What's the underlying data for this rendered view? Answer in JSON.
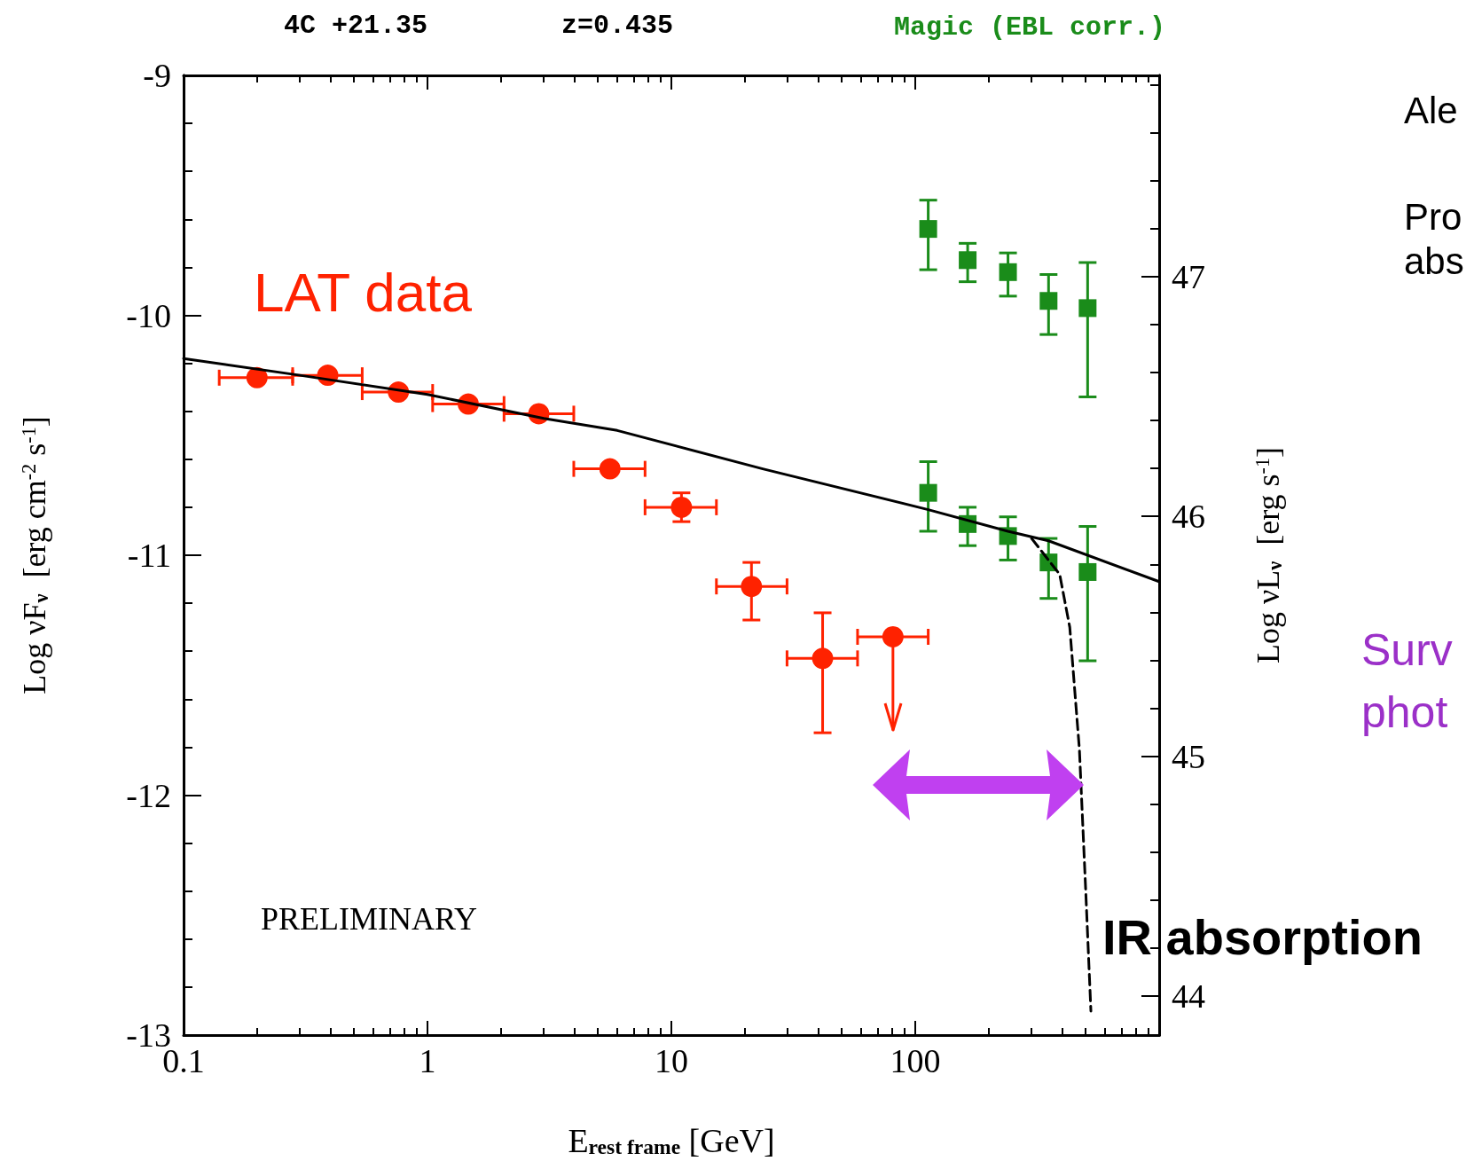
{
  "chart_data": {
    "type": "scatter",
    "title": "4C +21.35",
    "subtitle": "z=0.435",
    "xlabel": "E$_{rest frame}$ [GeV]",
    "ylabel": "Log νF$_{ν}$  [erg cm$^{-2}$ s$^{-1}$]",
    "y2label": "Log νL$_{ν}$  [erg s$^{-1}$]",
    "log": "x",
    "xlim": [
      0.1,
      1000
    ],
    "xticks": [
      0.1,
      {
        "value": 0.2,
        "label": null
      },
      {
        "value": 0.3,
        "label": null
      },
      {
        "value": 0.4,
        "label": null
      },
      {
        "value": 0.5,
        "label": null
      },
      {
        "value": 0.6,
        "label": null
      },
      {
        "value": 0.7,
        "label": null
      },
      {
        "value": 0.8,
        "label": null
      },
      {
        "value": 0.9,
        "label": null
      },
      1,
      {
        "value": 2,
        "label": null
      },
      {
        "value": 3,
        "label": null
      },
      {
        "value": 4,
        "label": null
      },
      {
        "value": 5,
        "label": null
      },
      {
        "value": 6,
        "label": null
      },
      {
        "value": 7,
        "label": null
      },
      {
        "value": 8,
        "label": null
      },
      {
        "value": 9,
        "label": null
      },
      10,
      {
        "value": 20,
        "label": null
      },
      {
        "value": 30,
        "label": null
      },
      {
        "value": 40,
        "label": null
      },
      {
        "value": 50,
        "label": null
      },
      {
        "value": 60,
        "label": null
      },
      {
        "value": 70,
        "label": null
      },
      {
        "value": 80,
        "label": null
      },
      {
        "value": 90,
        "label": null
      },
      100,
      {
        "value": 200,
        "label": null
      },
      {
        "value": 300,
        "label": null
      },
      {
        "value": 400,
        "label": null
      },
      {
        "value": 500,
        "label": null
      },
      {
        "value": 600,
        "label": null
      },
      {
        "value": 700,
        "label": null
      },
      {
        "value": 800,
        "label": null
      },
      {
        "value": 900,
        "label": null
      }
    ],
    "ylim": [
      -13,
      -9
    ],
    "yticks": [
      -13,
      {
        "value": -12.8,
        "label": null
      },
      {
        "value": -12.6,
        "label": null
      },
      {
        "value": -12.4,
        "label": null
      },
      {
        "value": -12.2,
        "label": null
      },
      -12,
      {
        "value": -11.8,
        "label": null
      },
      {
        "value": -11.6,
        "label": null
      },
      {
        "value": -11.4,
        "label": null
      },
      {
        "value": -11.2,
        "label": null
      },
      -11,
      {
        "value": -10.8,
        "label": null
      },
      {
        "value": -10.6,
        "label": null
      },
      {
        "value": -10.4,
        "label": null
      },
      {
        "value": -10.2,
        "label": null
      },
      -10,
      {
        "value": -9.8,
        "label": null
      },
      {
        "value": -9.6,
        "label": null
      },
      {
        "value": -9.4,
        "label": null
      },
      {
        "value": -9.2,
        "label": null
      },
      -9
    ],
    "y2lim": [
      43.838,
      47.838
    ],
    "y2ticks": [
      44,
      {
        "value": 44.2,
        "label": null
      },
      {
        "value": 44.4,
        "label": null
      },
      {
        "value": 44.6,
        "label": null
      },
      {
        "value": 44.8,
        "label": null
      },
      45,
      {
        "value": 45.2,
        "label": null
      },
      {
        "value": 45.4,
        "label": null
      },
      {
        "value": 45.6,
        "label": null
      },
      {
        "value": 45.8,
        "label": null
      },
      46,
      {
        "value": 46.2,
        "label": null
      },
      {
        "value": 46.4,
        "label": null
      },
      {
        "value": 46.6,
        "label": null
      },
      {
        "value": 46.8,
        "label": null
      },
      47,
      {
        "value": 47.2,
        "label": null
      },
      {
        "value": 47.4,
        "label": null
      },
      {
        "value": 47.6,
        "label": null
      },
      {
        "value": 47.8,
        "label": null
      }
    ],
    "series": [
      {
        "name": "LAT data",
        "marker": "circle",
        "color": "#ff2200",
        "x": [
          0.2,
          0.39,
          0.76,
          1.47,
          2.86,
          5.6,
          11,
          21.3,
          41.7,
          81
        ],
        "values": [
          -10.26,
          -10.25,
          -10.32,
          -10.37,
          -10.41,
          -10.64,
          -10.8,
          -11.13,
          -11.43,
          -11.34
        ],
        "xerrors": [
          [
            0.14,
            0.28
          ],
          [
            0.28,
            0.54
          ],
          [
            0.54,
            1.05
          ],
          [
            1.05,
            2.06
          ],
          [
            2.06,
            3.98
          ],
          [
            3.98,
            7.8
          ],
          [
            7.8,
            15.3
          ],
          [
            15.3,
            29.8
          ],
          [
            29.8,
            58
          ],
          [
            58,
            113
          ]
        ],
        "errors": [
          null,
          null,
          null,
          null,
          null,
          null,
          [
            -10.86,
            -10.74
          ],
          [
            -11.27,
            -11.03
          ],
          [
            -11.74,
            -11.24
          ],
          [
            -11.73,
            -11.34
          ]
        ]
      },
      {
        "name": "Magic (EBL corr.)",
        "marker": "square",
        "color": "#1a8c1a",
        "x": [
          113,
          164,
          240,
          352,
          509
        ],
        "values": [
          -9.64,
          -9.77,
          -9.82,
          -9.94,
          -9.97
        ],
        "errors": [
          [
            -9.81,
            -9.52
          ],
          [
            -9.86,
            -9.7
          ],
          [
            -9.92,
            -9.74
          ],
          [
            -10.08,
            -9.83
          ],
          [
            -10.34,
            -9.78
          ]
        ]
      },
      {
        "marker": "square",
        "color": "#1a8c1a",
        "x": [
          113,
          164,
          240,
          352,
          509
        ],
        "values": [
          -10.74,
          -10.87,
          -10.92,
          -11.03,
          -11.07
        ],
        "errors": [
          [
            -10.9,
            -10.61
          ],
          [
            -10.96,
            -10.8
          ],
          [
            -11.02,
            -10.84
          ],
          [
            -11.18,
            -10.93
          ],
          [
            -11.44,
            -10.88
          ]
        ]
      },
      {
        "type": "line",
        "marker": "none",
        "line_style": "solid",
        "color": "#000000",
        "x": [
          0.1,
          0.3,
          1,
          3,
          6,
          23.7,
          113,
          240,
          352,
          1000
        ],
        "values": [
          -10.18,
          -10.25,
          -10.33,
          -10.43,
          -10.48,
          -10.64,
          -10.81,
          -10.9,
          -10.94,
          -11.11
        ]
      },
      {
        "type": "line",
        "marker": "none",
        "line_style": "dashed",
        "color": "#000000",
        "x": [
          300,
          391,
          430,
          471,
          500,
          525
        ],
        "values": [
          -10.93,
          -11.08,
          -11.3,
          -11.81,
          -12.4,
          -12.9
        ]
      }
    ],
    "annotations": [
      "PRELIMINARY",
      "IR absorption",
      "Ale",
      "Pro",
      "abs",
      "Surv",
      "phot"
    ]
  }
}
